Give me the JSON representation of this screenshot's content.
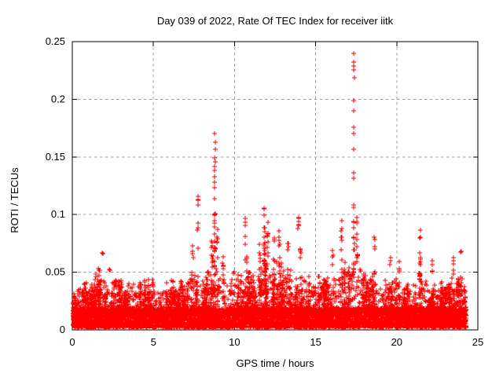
{
  "chart_data": {
    "type": "scatter",
    "title": "Day 039 of 2022, Rate Of TEC Index for receiver iitk",
    "xlabel": "GPS time / hours",
    "ylabel": "ROTI / TECUs",
    "xlim": [
      0,
      25
    ],
    "ylim": [
      0,
      0.25
    ],
    "xtick_values": [
      0,
      5,
      10,
      15,
      20,
      25
    ],
    "xtick_labels": [
      "0",
      "5",
      "10",
      "15",
      "20",
      "25"
    ],
    "ytick_values": [
      0,
      0.05,
      0.1,
      0.15,
      0.2,
      0.25
    ],
    "ytick_labels": [
      "0",
      "0.05",
      "0.1",
      "0.15",
      "0.2",
      "0.25"
    ],
    "grid": true,
    "legend": null,
    "marker": "plus",
    "colors": {
      "points": "#ff0000",
      "grid": "#a0a0a0",
      "axis": "#000000",
      "text": "#000000",
      "background": "#ffffff"
    },
    "x_data_range": [
      0.02,
      24.3
    ],
    "dense_band": {
      "y_min": 0.002,
      "y_max": 0.019
    },
    "peak": {
      "x": 17.35,
      "y": 0.24
    },
    "envelope": [
      [
        0,
        0.038
      ],
      [
        0.3,
        0.045
      ],
      [
        0.6,
        0.048
      ],
      [
        1,
        0.04
      ],
      [
        1.4,
        0.052
      ],
      [
        1.8,
        0.058
      ],
      [
        2.2,
        0.05
      ],
      [
        2.6,
        0.052
      ],
      [
        3,
        0.045
      ],
      [
        3.4,
        0.042
      ],
      [
        3.8,
        0.05
      ],
      [
        4.2,
        0.056
      ],
      [
        4.6,
        0.05
      ],
      [
        5,
        0.048
      ],
      [
        5.4,
        0.04
      ],
      [
        5.8,
        0.042
      ],
      [
        6.2,
        0.046
      ],
      [
        6.6,
        0.042
      ],
      [
        7,
        0.052
      ],
      [
        7.4,
        0.058
      ],
      [
        7.75,
        0.068
      ],
      [
        8,
        0.055
      ],
      [
        8.4,
        0.06
      ],
      [
        8.8,
        0.072
      ],
      [
        9.2,
        0.062
      ],
      [
        9.6,
        0.058
      ],
      [
        10,
        0.055
      ],
      [
        10.4,
        0.062
      ],
      [
        10.7,
        0.066
      ],
      [
        11,
        0.058
      ],
      [
        11.4,
        0.06
      ],
      [
        11.8,
        0.072
      ],
      [
        12.1,
        0.066
      ],
      [
        12.4,
        0.06
      ],
      [
        12.8,
        0.068
      ],
      [
        13.2,
        0.062
      ],
      [
        13.6,
        0.055
      ],
      [
        14,
        0.064
      ],
      [
        14.4,
        0.052
      ],
      [
        14.8,
        0.046
      ],
      [
        15.2,
        0.048
      ],
      [
        15.6,
        0.05
      ],
      [
        16,
        0.058
      ],
      [
        16.6,
        0.066
      ],
      [
        17,
        0.06
      ],
      [
        17.35,
        0.078
      ],
      [
        17.6,
        0.068
      ],
      [
        18,
        0.06
      ],
      [
        18.4,
        0.055
      ],
      [
        18.8,
        0.05
      ],
      [
        19.2,
        0.046
      ],
      [
        19.6,
        0.05
      ],
      [
        20,
        0.056
      ],
      [
        20.4,
        0.046
      ],
      [
        20.8,
        0.044
      ],
      [
        21.2,
        0.052
      ],
      [
        21.5,
        0.06
      ],
      [
        21.9,
        0.052
      ],
      [
        22.3,
        0.044
      ],
      [
        22.7,
        0.046
      ],
      [
        23.1,
        0.05
      ],
      [
        23.5,
        0.058
      ],
      [
        23.8,
        0.052
      ],
      [
        24.1,
        0.058
      ],
      [
        24.3,
        0.05
      ]
    ],
    "spike_columns": [
      {
        "x": 1.85,
        "y1": 0.064,
        "y2": 0.068,
        "n": 2
      },
      {
        "x": 2.3,
        "y1": 0.05,
        "y2": 0.053,
        "n": 2
      },
      {
        "x": 7.45,
        "y1": 0.06,
        "y2": 0.075,
        "n": 4
      },
      {
        "x": 7.75,
        "y1": 0.068,
        "y2": 0.116,
        "n": 9
      },
      {
        "x": 8.6,
        "y1": 0.05,
        "y2": 0.08,
        "n": 6
      },
      {
        "x": 8.78,
        "y1": 0.055,
        "y2": 0.12,
        "n": 22
      },
      {
        "x": 8.95,
        "y1": 0.055,
        "y2": 0.09,
        "n": 7
      },
      {
        "x": 9.3,
        "y1": 0.05,
        "y2": 0.072,
        "n": 5
      },
      {
        "x": 10.65,
        "y1": 0.06,
        "y2": 0.101,
        "n": 7
      },
      {
        "x": 11.55,
        "y1": 0.05,
        "y2": 0.075,
        "n": 6
      },
      {
        "x": 11.85,
        "y1": 0.055,
        "y2": 0.106,
        "n": 16
      },
      {
        "x": 12.05,
        "y1": 0.055,
        "y2": 0.095,
        "n": 10
      },
      {
        "x": 12.45,
        "y1": 0.05,
        "y2": 0.08,
        "n": 6
      },
      {
        "x": 12.75,
        "y1": 0.055,
        "y2": 0.091,
        "n": 8
      },
      {
        "x": 13.3,
        "y1": 0.05,
        "y2": 0.075,
        "n": 5
      },
      {
        "x": 13.95,
        "y1": 0.086,
        "y2": 0.106,
        "n": 6
      },
      {
        "x": 14.05,
        "y1": 0.05,
        "y2": 0.08,
        "n": 5
      },
      {
        "x": 16.05,
        "y1": 0.05,
        "y2": 0.07,
        "n": 4
      },
      {
        "x": 16.6,
        "y1": 0.055,
        "y2": 0.1,
        "n": 9
      },
      {
        "x": 17.35,
        "y1": 0.05,
        "y2": 0.132,
        "n": 18
      },
      {
        "x": 17.55,
        "y1": 0.055,
        "y2": 0.105,
        "n": 12
      },
      {
        "x": 18.65,
        "y1": 0.068,
        "y2": 0.081,
        "n": 5
      },
      {
        "x": 19.6,
        "y1": 0.055,
        "y2": 0.075,
        "n": 3
      },
      {
        "x": 20.15,
        "y1": 0.048,
        "y2": 0.062,
        "n": 4
      },
      {
        "x": 21.45,
        "y1": 0.055,
        "y2": 0.09,
        "n": 9
      },
      {
        "x": 22.2,
        "y1": 0.05,
        "y2": 0.065,
        "n": 4
      },
      {
        "x": 23.5,
        "y1": 0.048,
        "y2": 0.066,
        "n": 5
      },
      {
        "x": 23.97,
        "y1": 0.066,
        "y2": 0.069,
        "n": 2
      }
    ],
    "peak_spikes": [
      {
        "x": 17.35,
        "values": [
          0.24,
          0.2325,
          0.229,
          0.2255,
          0.219,
          0.199,
          0.19,
          0.176,
          0.17,
          0.157,
          0.136
        ]
      },
      {
        "x": 8.78,
        "values": [
          0.17,
          0.163,
          0.157,
          0.149,
          0.146,
          0.142,
          0.138,
          0.133,
          0.128,
          0.123
        ]
      }
    ],
    "gen": {
      "seed": 39,
      "band_points": 5600,
      "scatter_points": 1700,
      "trees": 170
    }
  }
}
